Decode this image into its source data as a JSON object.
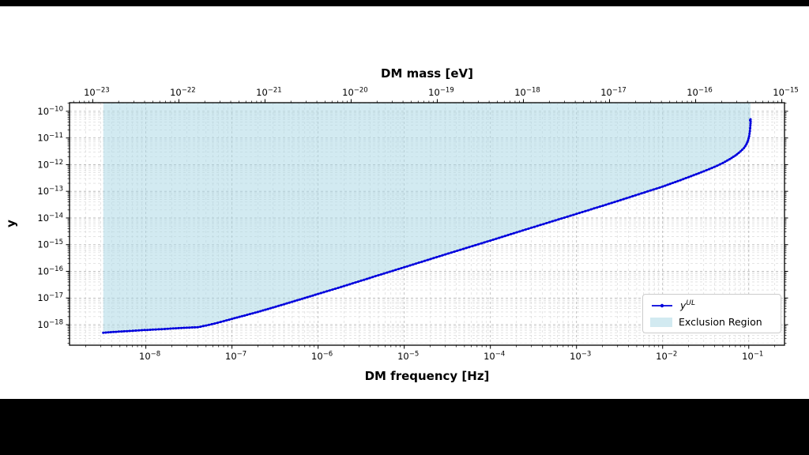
{
  "figure": {
    "background_color": "#000000",
    "canvas_color": "#ffffff"
  },
  "chart_data": {
    "type": "line",
    "title": "",
    "top_axis": {
      "label": "DM mass [eV]",
      "unit": "eV",
      "tick_exponents": [
        -23,
        -22,
        -21,
        -20,
        -19,
        -18,
        -17,
        -16,
        -15
      ],
      "mass_per_hz_eV": 4.1357e-15
    },
    "bottom_axis": {
      "label": "DM frequency [Hz]",
      "unit": "Hz",
      "scale": "log",
      "tick_exponents": [
        -8,
        -7,
        -6,
        -5,
        -4,
        -3,
        -2,
        -1
      ],
      "range": [
        1.3e-09,
        0.26
      ]
    },
    "left_axis": {
      "label": "y",
      "scale": "log",
      "tick_exponents": [
        -10,
        -11,
        -12,
        -13,
        -14,
        -15,
        -16,
        -17,
        -18
      ],
      "range": [
        1.7e-19,
        2.1e-10
      ]
    },
    "grid": {
      "on": true,
      "major_color": "#b3b3b3",
      "minor_color": "#d4d4d4",
      "dash": "3 3"
    },
    "legend": {
      "position": "lower right"
    },
    "series": [
      {
        "label_base": "y",
        "label_sup": "UL",
        "color": "#0000dd",
        "points": [
          [
            3.2e-09,
            5e-19
          ],
          [
            4.5e-09,
            5.4e-19
          ],
          [
            6.5e-09,
            5.8e-19
          ],
          [
            9e-09,
            6.2e-19
          ],
          [
            1.3e-08,
            6.6e-19
          ],
          [
            1.8e-08,
            7e-19
          ],
          [
            2.4e-08,
            7.4e-19
          ],
          [
            3.2e-08,
            7.8e-19
          ],
          [
            4e-08,
            8e-19
          ],
          [
            5e-08,
            9.3e-19
          ],
          [
            6.3e-08,
            1.1e-18
          ],
          [
            8e-08,
            1.35e-18
          ],
          [
            1e-07,
            1.65e-18
          ],
          [
            1.4e-07,
            2.2e-18
          ],
          [
            2e-07,
            3e-18
          ],
          [
            3e-07,
            4.4e-18
          ],
          [
            5e-07,
            7.2e-18
          ],
          [
            7e-07,
            1e-17
          ],
          [
            1e-06,
            1.42e-17
          ],
          [
            2e-06,
            2.8e-17
          ],
          [
            5e-06,
            7.1e-17
          ],
          [
            1e-05,
            1.42e-16
          ],
          [
            3e-05,
            4.3e-16
          ],
          [
            0.0001,
            1.42e-15
          ],
          [
            0.0003,
            4.3e-15
          ],
          [
            0.001,
            1.42e-14
          ],
          [
            0.003,
            4.3e-14
          ],
          [
            0.01,
            1.5e-13
          ],
          [
            0.015,
            2.4e-13
          ],
          [
            0.02,
            3.4e-13
          ],
          [
            0.03,
            5.6e-13
          ],
          [
            0.04,
            8.2e-13
          ],
          [
            0.05,
            1.15e-12
          ],
          [
            0.06,
            1.6e-12
          ],
          [
            0.07,
            2.2e-12
          ],
          [
            0.08,
            3.1e-12
          ],
          [
            0.088,
            4.2e-12
          ],
          [
            0.094,
            5.8e-12
          ],
          [
            0.098,
            8e-12
          ],
          [
            0.101,
            1.15e-11
          ],
          [
            0.103,
            1.8e-11
          ],
          [
            0.1045,
            3e-11
          ],
          [
            0.105,
            4.2e-11
          ],
          [
            0.1048,
            5e-11
          ],
          [
            0.1035,
            4.6e-11
          ]
        ]
      }
    ],
    "exclusion_region": {
      "label": "Exclusion Region",
      "color": "#add8e6",
      "opacity": 0.55
    }
  }
}
